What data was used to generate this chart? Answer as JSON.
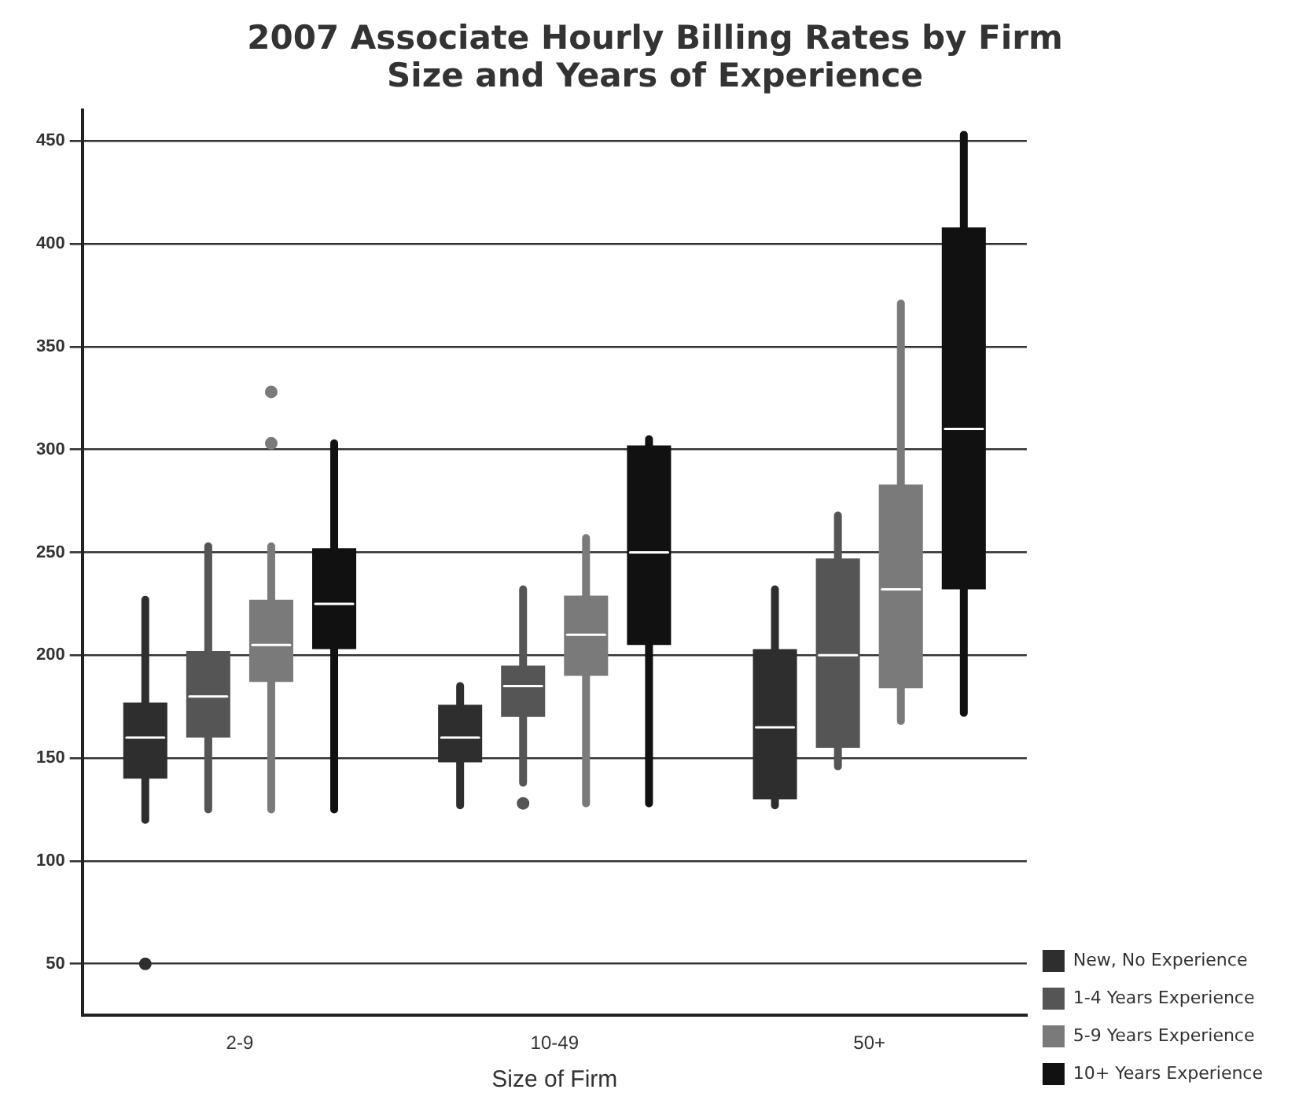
{
  "chart_data": {
    "type": "box",
    "title": "2007 Associate Hourly Billing Rates by Firm Size and Years of Experience",
    "xlabel": "Size of Firm",
    "categories": [
      "2-9",
      "10-49",
      "50+"
    ],
    "ylim": [
      25,
      465
    ],
    "yticks": [
      50,
      100,
      150,
      200,
      250,
      300,
      350,
      400,
      450
    ],
    "grid": "y",
    "legend": "bottom right",
    "series": [
      {
        "name": "New, No Experience",
        "color": "#2e2e2e",
        "boxes": [
          {
            "low": 120,
            "q1": 140,
            "median": 160,
            "q3": 177,
            "high": 227,
            "outliers": [
              50
            ]
          },
          {
            "low": 127,
            "q1": 148,
            "median": 160,
            "q3": 176,
            "high": 185
          },
          {
            "low": 127,
            "q1": 130,
            "median": 165,
            "q3": 203,
            "high": 232
          }
        ]
      },
      {
        "name": "1-4 Years Experience",
        "color": "#555555",
        "boxes": [
          {
            "low": 125,
            "q1": 160,
            "median": 180,
            "q3": 202,
            "high": 253
          },
          {
            "low": 138,
            "q1": 170,
            "median": 185,
            "q3": 195,
            "high": 232,
            "outliers": [
              128
            ]
          },
          {
            "low": 146,
            "q1": 155,
            "median": 200,
            "q3": 247,
            "high": 268
          }
        ]
      },
      {
        "name": "5-9 Years Experience",
        "color": "#7a7a7a",
        "boxes": [
          {
            "low": 125,
            "q1": 187,
            "median": 205,
            "q3": 227,
            "high": 253,
            "outliers": [
              303,
              328
            ]
          },
          {
            "low": 128,
            "q1": 190,
            "median": 210,
            "q3": 229,
            "high": 257
          },
          {
            "low": 168,
            "q1": 184,
            "median": 232,
            "q3": 283,
            "high": 371
          }
        ]
      },
      {
        "name": "10+ Years Experience",
        "color": "#111111",
        "boxes": [
          {
            "low": 125,
            "q1": 203,
            "median": 225,
            "q3": 252,
            "high": 303
          },
          {
            "low": 128,
            "q1": 205,
            "median": 250,
            "q3": 302,
            "high": 305
          },
          {
            "low": 172,
            "q1": 232,
            "median": 310,
            "q3": 408,
            "high": 453
          }
        ]
      }
    ]
  }
}
